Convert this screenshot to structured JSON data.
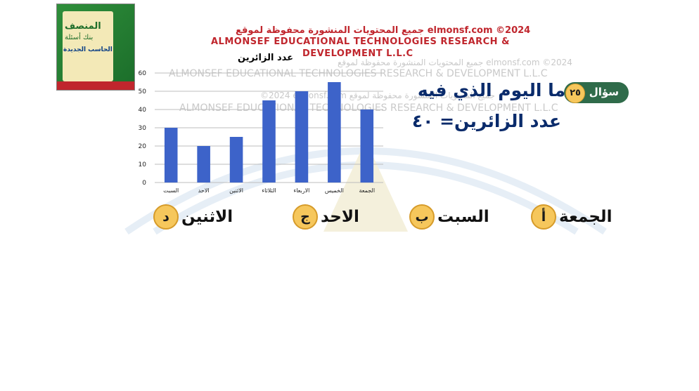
{
  "cover": {
    "title": "المنصف",
    "subtitle": "بنك أسئلة",
    "line3": "الحاسب الجديدة"
  },
  "copyright": {
    "arabic": "جميع المحتويات المنشورة محفوظة لموقع elmonsf.com ©2024",
    "english_line1": "ALMONSEF EDUCATIONAL TECHNOLOGIES RESEARCH &",
    "english_line2": "DEVELOPMENT L.L.C"
  },
  "watermarks": {
    "w1": "جميع المحتويات المنشورة محفوظة لموقع elmonsf.com ©2024",
    "w2": "ALMONSEF EDUCATIONAL TECHNOLOGIES RESEARCH & DEVELOPMENT L.L.C",
    "w3": "©2024 elmonsf.com جميع المحتويات المنشورة محفوظة لموقع",
    "w4": "ALMONSEF EDUCATIONAL TECHNOLOGIES RESEARCH & DEVELOPMENT L.L.C"
  },
  "chart_data": {
    "type": "bar",
    "title": "عدد الزائرين",
    "categories": [
      "السبت",
      "الاحد",
      "الاثنين",
      "الثلاثاء",
      "الاربعاء",
      "الخميس",
      "الجمعة"
    ],
    "values": [
      30,
      20,
      25,
      45,
      50,
      55,
      40
    ],
    "ylim": [
      0,
      60
    ],
    "yticks": [
      0,
      10,
      20,
      30,
      40,
      50,
      60
    ],
    "grid": true,
    "bar_color": "#3d63c9"
  },
  "question": {
    "label": "سؤال",
    "number": "٢٥",
    "text": "ما اليوم الذي فيه",
    "text2": "عدد الزائرين= ٤٠"
  },
  "options": [
    {
      "letter": "أ",
      "text": "الجمعة"
    },
    {
      "letter": "ب",
      "text": "السبت"
    },
    {
      "letter": "ج",
      "text": "الاحد"
    },
    {
      "letter": "د",
      "text": "الاثنين"
    }
  ],
  "colors": {
    "accent_gold": "#f6c75c",
    "question_blue": "#0a2b6b",
    "badge_green": "#2f6b4a",
    "copyright_red": "#c0262d"
  }
}
